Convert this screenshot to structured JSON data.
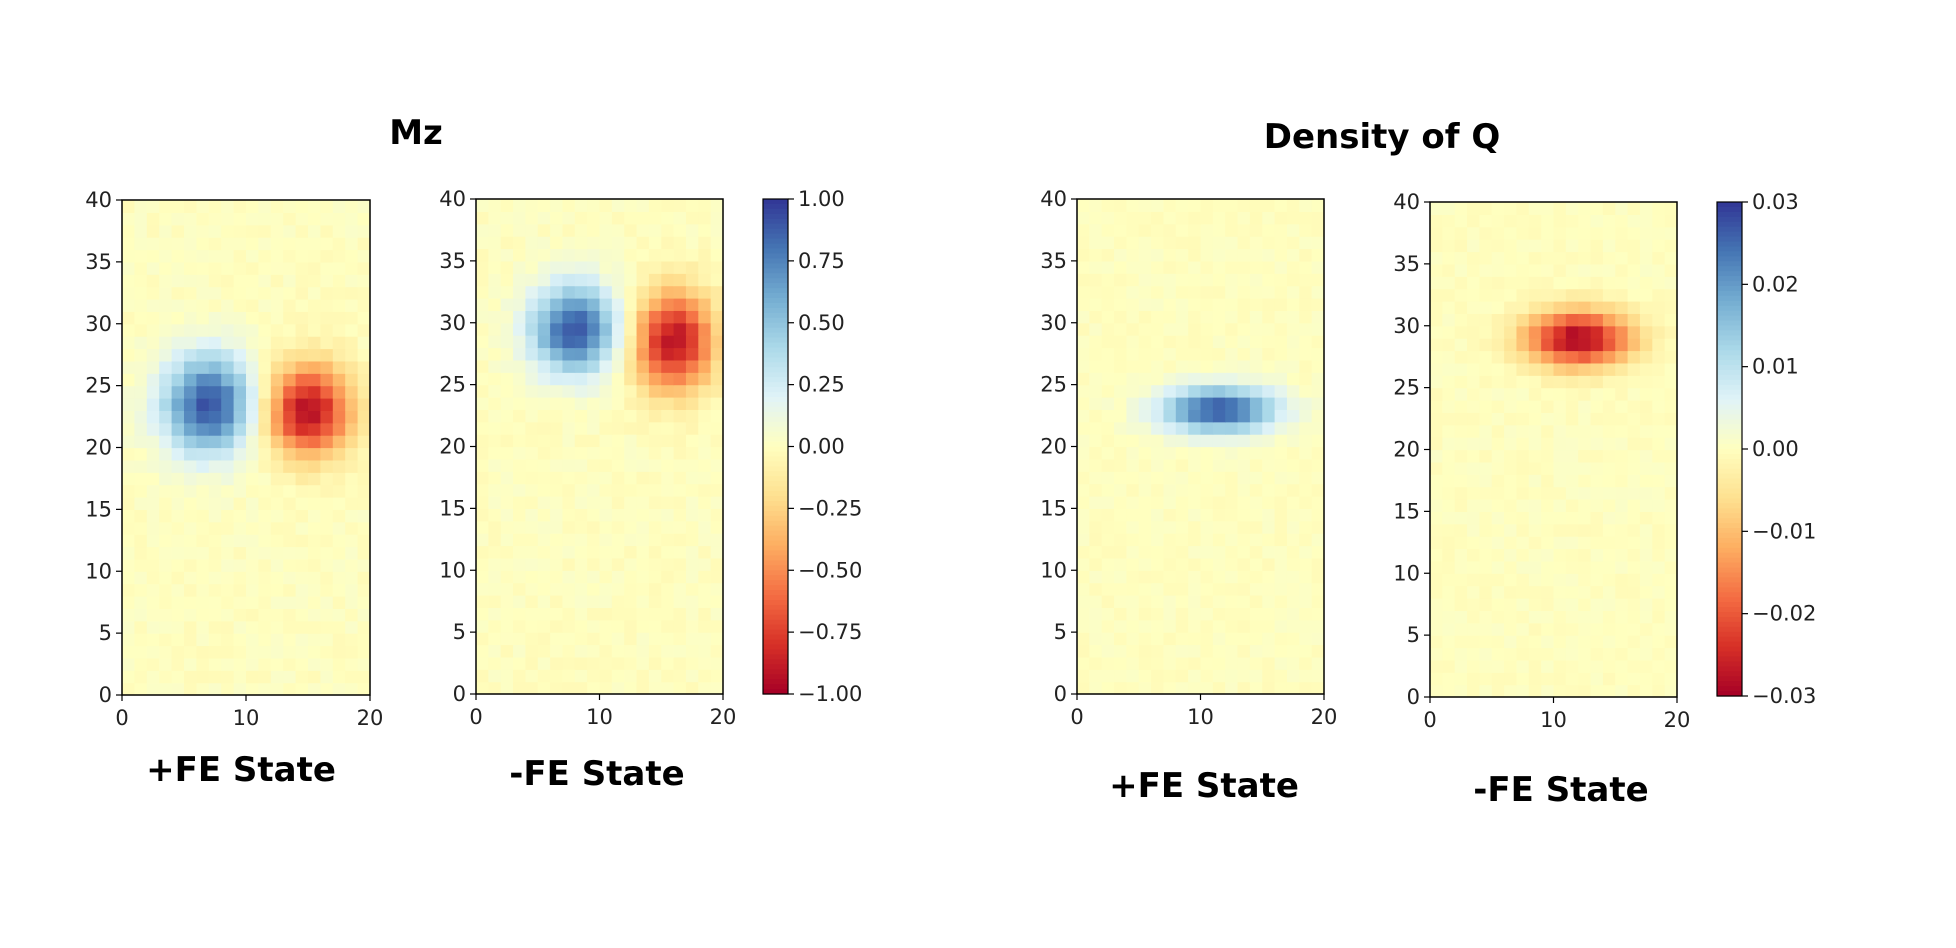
{
  "groups": [
    {
      "title": "Mz",
      "colorbar": {
        "vmin": -1.0,
        "vmax": 1.0,
        "ticks": [
          1.0,
          0.75,
          0.5,
          0.25,
          0.0,
          -0.25,
          -0.5,
          -0.75,
          -1.0
        ],
        "tick_labels": [
          "1.00",
          "0.75",
          "0.50",
          "0.25",
          "0.00",
          "−0.25",
          "−0.50",
          "−0.75",
          "−1.00"
        ]
      }
    },
    {
      "title": "Density of Q",
      "colorbar": {
        "vmin": -0.03,
        "vmax": 0.03,
        "ticks": [
          0.03,
          0.02,
          0.01,
          0.0,
          -0.01,
          -0.02,
          -0.03
        ],
        "tick_labels": [
          "0.03",
          "0.02",
          "0.01",
          "0.00",
          "−0.01",
          "−0.02",
          "−0.03"
        ]
      }
    }
  ],
  "colormap": "RdYlBu",
  "chart_data": [
    {
      "type": "heatmap",
      "group": "Mz",
      "caption": "+FE State",
      "xlim": [
        0,
        20
      ],
      "ylim": [
        0,
        40
      ],
      "grid_cols": 20,
      "grid_rows": 40,
      "xticks": [
        0,
        10,
        20
      ],
      "yticks": [
        0,
        5,
        10,
        15,
        20,
        25,
        30,
        35,
        40
      ],
      "vmin": -1.0,
      "vmax": 1.0,
      "noise": 0.035,
      "blobs": [
        {
          "x": 7,
          "y": 23.5,
          "sx": 2.6,
          "sy": 2.8,
          "amp": 0.92
        },
        {
          "x": 15,
          "y": 23,
          "sx": 2.4,
          "sy": 2.6,
          "amp": -0.95
        }
      ]
    },
    {
      "type": "heatmap",
      "group": "Mz",
      "caption": "-FE State",
      "xlim": [
        0,
        20
      ],
      "ylim": [
        0,
        40
      ],
      "grid_cols": 20,
      "grid_rows": 40,
      "xticks": [
        0,
        10,
        20
      ],
      "yticks": [
        0,
        5,
        10,
        15,
        20,
        25,
        30,
        35,
        40
      ],
      "vmin": -1.0,
      "vmax": 1.0,
      "noise": 0.035,
      "blobs": [
        {
          "x": 8,
          "y": 29.5,
          "sx": 2.5,
          "sy": 2.5,
          "amp": 0.9
        },
        {
          "x": 16,
          "y": 28.5,
          "sx": 2.3,
          "sy": 2.8,
          "amp": -0.93
        }
      ]
    },
    {
      "type": "heatmap",
      "group": "Density of Q",
      "caption": "+FE State",
      "xlim": [
        0,
        20
      ],
      "ylim": [
        0,
        40
      ],
      "grid_cols": 20,
      "grid_rows": 40,
      "xticks": [
        0,
        10,
        20
      ],
      "yticks": [
        0,
        5,
        10,
        15,
        20,
        25,
        30,
        35,
        40
      ],
      "vmin": -0.03,
      "vmax": 0.03,
      "noise": 0.0009,
      "blobs": [
        {
          "x": 11.5,
          "y": 23,
          "sx": 3.2,
          "sy": 1.3,
          "amp": 0.027
        }
      ]
    },
    {
      "type": "heatmap",
      "group": "Density of Q",
      "caption": "-FE State",
      "xlim": [
        0,
        20
      ],
      "ylim": [
        0,
        40
      ],
      "grid_cols": 20,
      "grid_rows": 40,
      "xticks": [
        0,
        10,
        20
      ],
      "yticks": [
        0,
        5,
        10,
        15,
        20,
        25,
        30,
        35,
        40
      ],
      "vmin": -0.03,
      "vmax": 0.03,
      "noise": 0.0009,
      "blobs": [
        {
          "x": 12,
          "y": 29,
          "sx": 3.0,
          "sy": 1.6,
          "amp": -0.029
        }
      ]
    }
  ]
}
